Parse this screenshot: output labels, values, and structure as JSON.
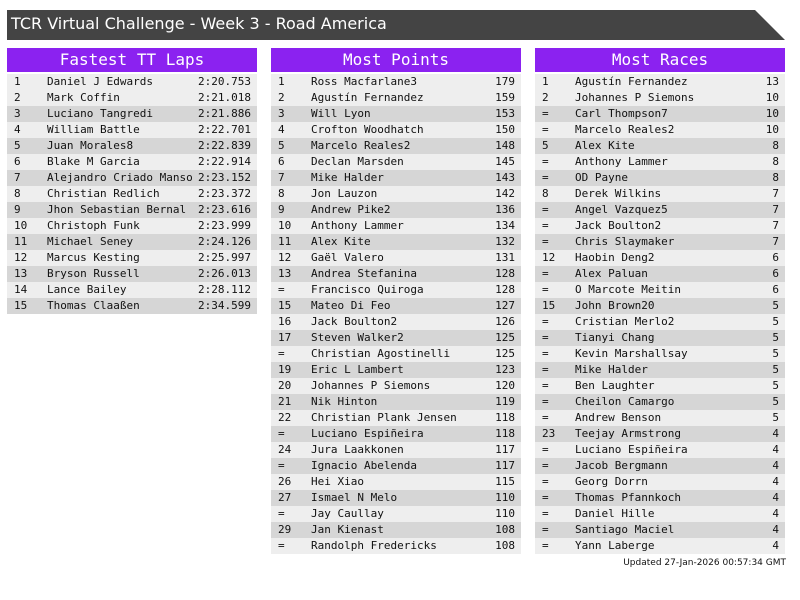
{
  "header": {
    "title": "TCR Virtual Challenge - Week 3 - Road America"
  },
  "tables": [
    {
      "title": "Fastest TT Laps",
      "rows": [
        [
          1,
          "Daniel J Edwards",
          "2:20.753"
        ],
        [
          2,
          "Mark Coffin",
          "2:21.018"
        ],
        [
          3,
          "Luciano Tangredi",
          "2:21.886"
        ],
        [
          4,
          "William Battle",
          "2:22.701"
        ],
        [
          5,
          "Juan Morales8",
          "2:22.839"
        ],
        [
          6,
          "Blake M Garcia",
          "2:22.914"
        ],
        [
          7,
          "Alejandro Criado Manso",
          "2:23.152"
        ],
        [
          8,
          "Christian Redlich",
          "2:23.372"
        ],
        [
          9,
          "Jhon Sebastian Bernal",
          "2:23.616"
        ],
        [
          10,
          "Christoph Funk",
          "2:23.999"
        ],
        [
          11,
          "Michael Seney",
          "2:24.126"
        ],
        [
          12,
          "Marcus Kesting",
          "2:25.997"
        ],
        [
          13,
          "Bryson Russell",
          "2:26.013"
        ],
        [
          14,
          "Lance Bailey",
          "2:28.112"
        ],
        [
          15,
          "Thomas Claaßen",
          "2:34.599"
        ]
      ]
    },
    {
      "title": "Most Points",
      "rows": [
        [
          1,
          "Ross Macfarlane3",
          179
        ],
        [
          2,
          "Agustín Fernandez",
          159
        ],
        [
          3,
          "Will Lyon",
          153
        ],
        [
          4,
          "Crofton Woodhatch",
          150
        ],
        [
          5,
          "Marcelo Reales2",
          148
        ],
        [
          6,
          "Declan Marsden",
          145
        ],
        [
          7,
          "Mike Halder",
          143
        ],
        [
          8,
          "Jon Lauzon",
          142
        ],
        [
          9,
          "Andrew Pike2",
          136
        ],
        [
          10,
          "Anthony Lammer",
          134
        ],
        [
          11,
          "Alex Kite",
          132
        ],
        [
          12,
          "Gaël Valero",
          131
        ],
        [
          13,
          "Andrea Stefanina",
          128
        ],
        [
          "=",
          "Francisco Quiroga",
          128
        ],
        [
          15,
          "Mateo Di Feo",
          127
        ],
        [
          16,
          "Jack Boulton2",
          126
        ],
        [
          17,
          "Steven Walker2",
          125
        ],
        [
          "=",
          "Christian Agostinelli",
          125
        ],
        [
          19,
          "Eric L Lambert",
          123
        ],
        [
          20,
          "Johannes P Siemons",
          120
        ],
        [
          21,
          "Nik Hinton",
          119
        ],
        [
          22,
          "Christian Plank Jensen",
          118
        ],
        [
          "=",
          "Luciano Espiñeira",
          118
        ],
        [
          24,
          "Jura Laakkonen",
          117
        ],
        [
          "=",
          "Ignacio Abelenda",
          117
        ],
        [
          26,
          "Hei Xiao",
          115
        ],
        [
          27,
          "Ismael N Melo",
          110
        ],
        [
          "=",
          "Jay Caullay",
          110
        ],
        [
          29,
          "Jan Kienast",
          108
        ],
        [
          "=",
          "Randolph Fredericks",
          108
        ]
      ]
    },
    {
      "title": "Most Races",
      "rows": [
        [
          1,
          "Agustín Fernandez",
          13
        ],
        [
          2,
          "Johannes P Siemons",
          10
        ],
        [
          "=",
          "Carl Thompson7",
          10
        ],
        [
          "=",
          "Marcelo Reales2",
          10
        ],
        [
          5,
          "Alex Kite",
          8
        ],
        [
          "=",
          "Anthony Lammer",
          8
        ],
        [
          "=",
          "OD Payne",
          8
        ],
        [
          8,
          "Derek Wilkins",
          7
        ],
        [
          "=",
          "Angel Vazquez5",
          7
        ],
        [
          "=",
          "Jack Boulton2",
          7
        ],
        [
          "=",
          "Chris Slaymaker",
          7
        ],
        [
          12,
          "Haobin Deng2",
          6
        ],
        [
          "=",
          "Alex Paluan",
          6
        ],
        [
          "=",
          "O Marcote Meitin",
          6
        ],
        [
          15,
          "John Brown20",
          5
        ],
        [
          "=",
          "Cristian Merlo2",
          5
        ],
        [
          "=",
          "Tianyi Chang",
          5
        ],
        [
          "=",
          "Kevin Marshallsay",
          5
        ],
        [
          "=",
          "Mike Halder",
          5
        ],
        [
          "=",
          "Ben Laughter",
          5
        ],
        [
          "=",
          "Cheilon Camargo",
          5
        ],
        [
          "=",
          "Andrew Benson",
          5
        ],
        [
          23,
          "Teejay Armstrong",
          4
        ],
        [
          "=",
          "Luciano Espiñeira",
          4
        ],
        [
          "=",
          "Jacob Bergmann",
          4
        ],
        [
          "=",
          "Georg Dorrn",
          4
        ],
        [
          "=",
          "Thomas Pfannkoch",
          4
        ],
        [
          "=",
          "Daniel Hille",
          4
        ],
        [
          "=",
          "Santiago Maciel",
          4
        ],
        [
          "=",
          "Yann Laberge",
          4
        ]
      ]
    }
  ],
  "footer": {
    "updated": "Updated 27-Jan-2026 00:57:34 GMT"
  }
}
